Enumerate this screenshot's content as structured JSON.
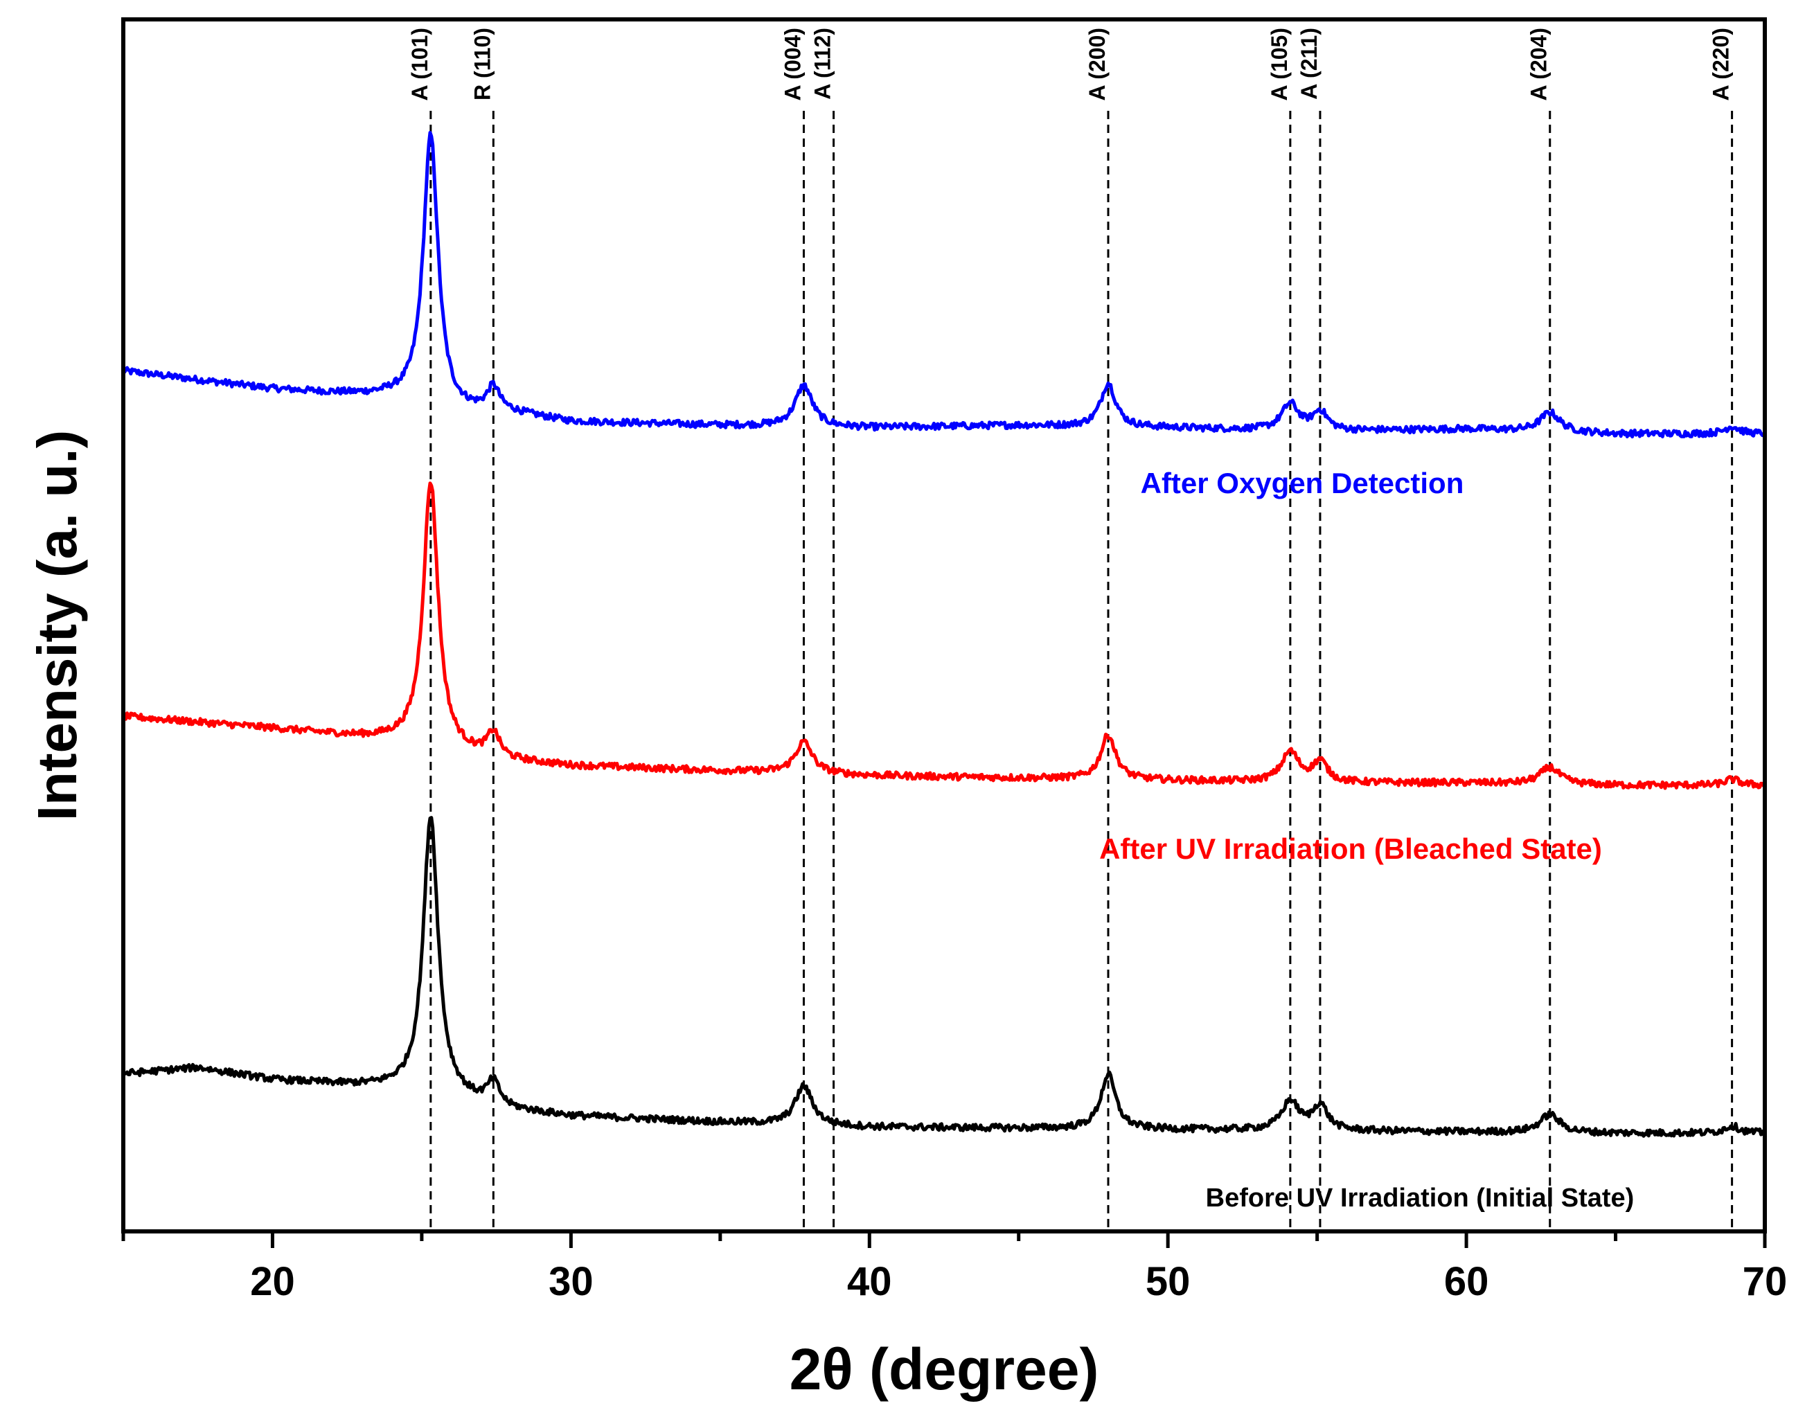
{
  "chart_data": {
    "type": "line",
    "title": "",
    "xlabel": "2θ (degree)",
    "ylabel": "Intensity (a. u.)",
    "xlim": [
      15,
      70
    ],
    "ylim": [
      0,
      100
    ],
    "xticks": [
      20,
      30,
      40,
      50,
      60,
      70
    ],
    "xminor_step": 5,
    "grid": false,
    "legend": "none",
    "reference_peaks": [
      {
        "label": "A (101)",
        "x": 25.3
      },
      {
        "label": "R (110)",
        "x": 27.4
      },
      {
        "label": "A (004)",
        "x": 37.8
      },
      {
        "label": "A (112)",
        "x": 38.8
      },
      {
        "label": "A (200)",
        "x": 48.0
      },
      {
        "label": "A (105)",
        "x": 54.1
      },
      {
        "label": "A (211)",
        "x": 55.1
      },
      {
        "label": "A (204)",
        "x": 62.8
      },
      {
        "label": "A (220)",
        "x": 68.9
      }
    ],
    "series": [
      {
        "name": "After Oxygen Detection",
        "color": "#0000ff",
        "label_position": "right of A (200), below curve",
        "baseline": [
          [
            15,
            71.0
          ],
          [
            20,
            69.5
          ],
          [
            24,
            68.8
          ],
          [
            26,
            67.5
          ],
          [
            28,
            67.5
          ],
          [
            30,
            66.8
          ],
          [
            35,
            66.5
          ],
          [
            40,
            66.3
          ],
          [
            45,
            66.5
          ],
          [
            50,
            66.3
          ],
          [
            55,
            66.0
          ],
          [
            60,
            66.2
          ],
          [
            65,
            65.8
          ],
          [
            70,
            65.8
          ]
        ],
        "peaks": [
          {
            "x": 25.3,
            "height": 22.5,
            "fwhm": 0.6
          },
          {
            "x": 27.4,
            "height": 2.0,
            "fwhm": 0.5
          },
          {
            "x": 37.8,
            "height": 3.4,
            "fwhm": 0.7
          },
          {
            "x": 48.0,
            "height": 3.6,
            "fwhm": 0.6
          },
          {
            "x": 54.1,
            "height": 2.2,
            "fwhm": 0.7
          },
          {
            "x": 55.1,
            "height": 1.6,
            "fwhm": 0.6
          },
          {
            "x": 62.8,
            "height": 1.6,
            "fwhm": 0.8
          },
          {
            "x": 68.9,
            "height": 0.6,
            "fwhm": 0.6
          }
        ]
      },
      {
        "name": "After UV Irradiation (Bleached State)",
        "color": "#ff0000",
        "label_position": "right of A (200), below curve",
        "baseline": [
          [
            15,
            42.5
          ],
          [
            20,
            41.5
          ],
          [
            24,
            40.5
          ],
          [
            26,
            39.5
          ],
          [
            28,
            38.8
          ],
          [
            30,
            38.4
          ],
          [
            35,
            38.0
          ],
          [
            40,
            37.6
          ],
          [
            45,
            37.4
          ],
          [
            50,
            37.2
          ],
          [
            55,
            37.0
          ],
          [
            60,
            37.0
          ],
          [
            65,
            36.8
          ],
          [
            70,
            36.8
          ]
        ],
        "peaks": [
          {
            "x": 25.3,
            "height": 22.0,
            "fwhm": 0.6
          },
          {
            "x": 27.4,
            "height": 2.0,
            "fwhm": 0.5
          },
          {
            "x": 37.8,
            "height": 2.6,
            "fwhm": 0.7
          },
          {
            "x": 48.0,
            "height": 3.7,
            "fwhm": 0.6
          },
          {
            "x": 54.1,
            "height": 2.5,
            "fwhm": 0.7
          },
          {
            "x": 55.1,
            "height": 1.7,
            "fwhm": 0.6
          },
          {
            "x": 62.8,
            "height": 1.4,
            "fwhm": 0.8
          },
          {
            "x": 68.9,
            "height": 0.5,
            "fwhm": 0.6
          }
        ]
      },
      {
        "name": "Before UV Irradiation (Initial State)",
        "color": "#000000",
        "label_position": "bottom-right, below curve",
        "baseline": [
          [
            15,
            13.0
          ],
          [
            17.5,
            13.5
          ],
          [
            20,
            12.5
          ],
          [
            24,
            11.8
          ],
          [
            26,
            11.0
          ],
          [
            28,
            10.0
          ],
          [
            30,
            9.5
          ],
          [
            35,
            9.0
          ],
          [
            40,
            8.6
          ],
          [
            45,
            8.5
          ],
          [
            50,
            8.4
          ],
          [
            55,
            8.3
          ],
          [
            60,
            8.2
          ],
          [
            65,
            8.1
          ],
          [
            70,
            8.1
          ]
        ],
        "peaks": [
          {
            "x": 25.3,
            "height": 23.0,
            "fwhm": 0.6
          },
          {
            "x": 27.4,
            "height": 1.9,
            "fwhm": 0.5
          },
          {
            "x": 37.8,
            "height": 3.2,
            "fwhm": 0.7
          },
          {
            "x": 48.0,
            "height": 4.5,
            "fwhm": 0.6
          },
          {
            "x": 54.1,
            "height": 2.4,
            "fwhm": 0.7
          },
          {
            "x": 55.1,
            "height": 2.1,
            "fwhm": 0.6
          },
          {
            "x": 62.8,
            "height": 1.5,
            "fwhm": 0.8
          },
          {
            "x": 68.9,
            "height": 0.6,
            "fwhm": 0.6
          }
        ]
      }
    ]
  }
}
